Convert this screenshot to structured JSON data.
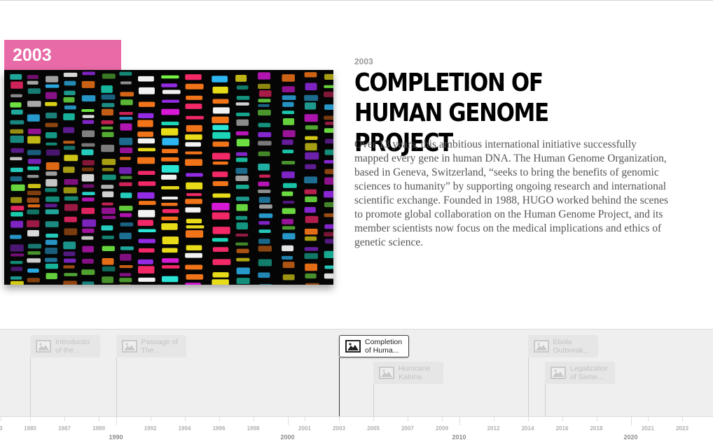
{
  "slide": {
    "year_flag": "2003",
    "date": "2003",
    "headline": "Completion of Human Genome Project",
    "body": "Over 13 years, this ambitious international initiative successfully mapped every gene in human DNA. The Human Genome Organization, based in Geneva, Switzerland, “seeks to bring the benefits of genomic sciences to humanity” by supporting ongoing research and international scientific exchange. Founded in 1988, HUGO worked behind the scenes to promote global collaboration on the Human Genome Project, and its member scientists now focus on the medical implications and ethics of genetic science.",
    "image_icon": "dna-sequencing-image",
    "flag_color": "#e86aa6"
  },
  "timenav": {
    "markers": [
      {
        "label": "Introductio\nof the...",
        "year": 1985,
        "active": false
      },
      {
        "label": "Passage of\nThe...",
        "year": 1990,
        "active": false
      },
      {
        "label": "Completion\nof Huma...",
        "year": 2003,
        "active": true
      },
      {
        "label": "Hurricane\nKatrina",
        "year": 2005,
        "active": false
      },
      {
        "label": "Ebola\nOutbreak...",
        "year": 2014,
        "active": false
      },
      {
        "label": "Legalizatior\nof Same...",
        "year": 2015,
        "active": false
      }
    ],
    "minor_ticks": [
      "3",
      "1985",
      "1987",
      "1989",
      "1992",
      "1994",
      "1996",
      "1998",
      "2001",
      "2003",
      "2005",
      "2007",
      "2009",
      "2012",
      "2014",
      "2016",
      "2018",
      "2021",
      "2023"
    ],
    "major_ticks": [
      "1990",
      "2000",
      "2010",
      "2020"
    ]
  }
}
